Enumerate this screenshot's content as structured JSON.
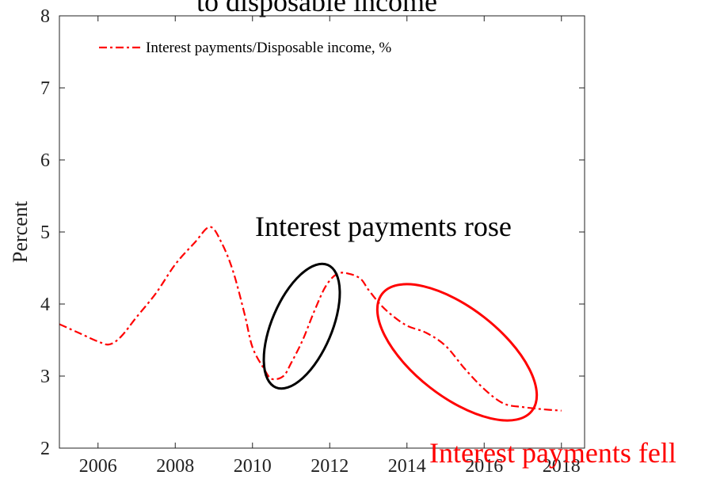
{
  "chart_data": {
    "type": "line",
    "title": "to disposable income",
    "ylabel": "Percent",
    "xlabel": "",
    "xlim": [
      2005,
      2018.6
    ],
    "ylim": [
      2,
      8
    ],
    "xticks": [
      2006,
      2008,
      2010,
      2012,
      2014,
      2016,
      2018
    ],
    "yticks": [
      2,
      3,
      4,
      5,
      6,
      7,
      8
    ],
    "grid": false,
    "legend_position": "top-left",
    "series": [
      {
        "name": "Interest payments/Disposable income, %",
        "color": "#ff0000",
        "line_style": "dash-dot",
        "x": [
          2005.0,
          2005.5,
          2006.0,
          2006.3,
          2006.6,
          2007.0,
          2007.5,
          2008.0,
          2008.5,
          2008.9,
          2009.2,
          2009.5,
          2009.8,
          2010.0,
          2010.3,
          2010.5,
          2010.8,
          2011.0,
          2011.3,
          2011.6,
          2011.9,
          2012.2,
          2012.5,
          2012.8,
          2013.0,
          2013.3,
          2013.6,
          2014.0,
          2014.5,
          2015.0,
          2015.5,
          2016.0,
          2016.5,
          2017.0,
          2017.5,
          2018.0
        ],
        "values": [
          3.72,
          3.6,
          3.48,
          3.44,
          3.55,
          3.82,
          4.15,
          4.55,
          4.85,
          5.07,
          4.85,
          4.45,
          3.85,
          3.4,
          3.1,
          2.96,
          3.0,
          3.18,
          3.5,
          3.9,
          4.25,
          4.42,
          4.42,
          4.35,
          4.2,
          4.0,
          3.85,
          3.7,
          3.6,
          3.42,
          3.1,
          2.82,
          2.62,
          2.57,
          2.54,
          2.52
        ]
      }
    ],
    "annotations": [
      {
        "text": "Interest payments rose",
        "color": "#000000",
        "ellipse_color": "#000000"
      },
      {
        "text": "Interest payments fell",
        "color": "#ff0000",
        "ellipse_color": "#ff0000"
      }
    ]
  }
}
